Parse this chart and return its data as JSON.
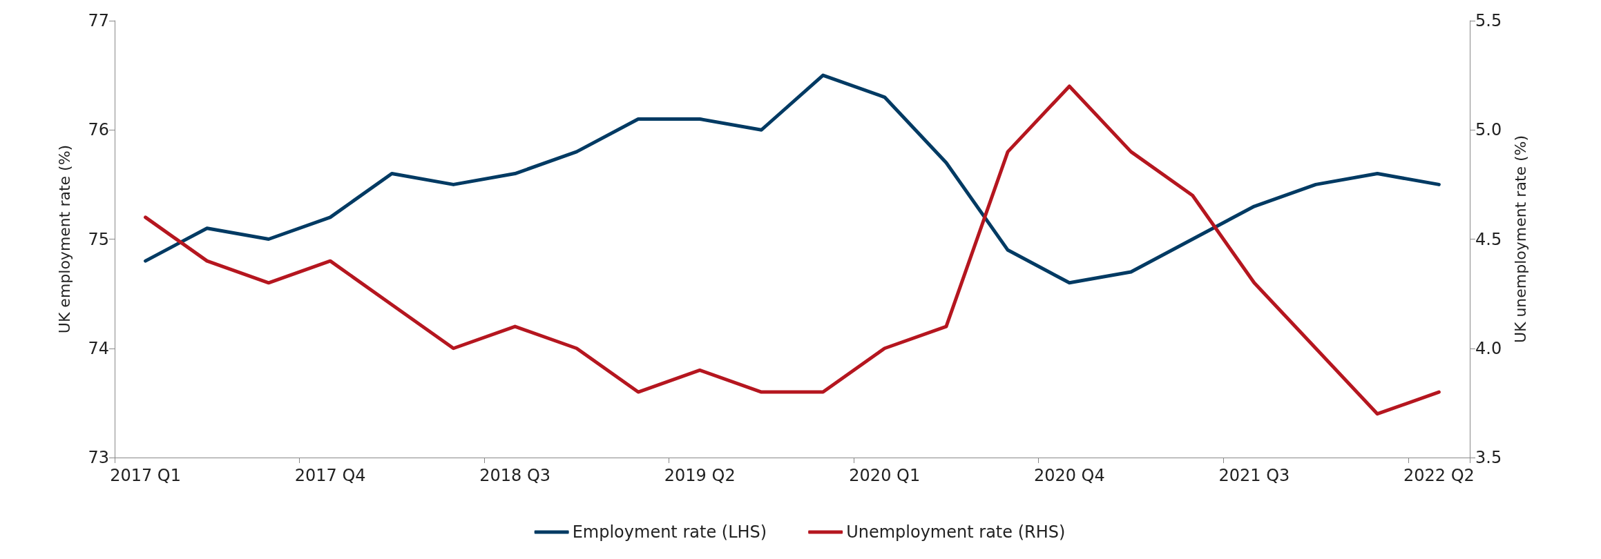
{
  "chart_data": {
    "type": "line",
    "categories": [
      "2017 Q1",
      null,
      null,
      "2017 Q4",
      null,
      null,
      "2018 Q3",
      null,
      null,
      "2019 Q2",
      null,
      null,
      "2020 Q1",
      null,
      null,
      "2020 Q4",
      null,
      null,
      "2021 Q3",
      null,
      null,
      "2022 Q2"
    ],
    "ylabel": "UK employment rate (%)",
    "y2label": "UK unemployment rate (%)",
    "ylim": [
      73,
      77
    ],
    "yticks": [
      73,
      74,
      75,
      76,
      77
    ],
    "y2lim": [
      3.5,
      5.5
    ],
    "y2ticks": [
      3.5,
      {
        "value": 4,
        "label": "4.0"
      },
      4.5,
      {
        "value": 5,
        "label": "5.0"
      },
      5.5
    ],
    "series": [
      {
        "name": "Employment rate (LHS)",
        "color": "#003a63",
        "values": [
          74.8,
          75.1,
          75.0,
          75.2,
          75.6,
          75.5,
          75.6,
          75.8,
          76.1,
          76.1,
          76.0,
          76.5,
          76.3,
          75.7,
          74.9,
          74.6,
          74.7,
          75.0,
          75.3,
          75.5,
          75.6,
          75.5
        ]
      },
      {
        "name": "Unemployment rate (RHS)",
        "color": "#b5161f",
        "axis": "y2",
        "values": [
          4.6,
          4.4,
          4.3,
          4.4,
          4.2,
          4.0,
          4.1,
          4.0,
          3.8,
          3.9,
          3.8,
          3.8,
          4.0,
          4.1,
          4.9,
          5.2,
          4.9,
          4.7,
          4.3,
          4.0,
          3.7,
          3.8
        ]
      }
    ],
    "grid": false,
    "legend": "bottom",
    "marker": "none",
    "line_style": "solid"
  }
}
